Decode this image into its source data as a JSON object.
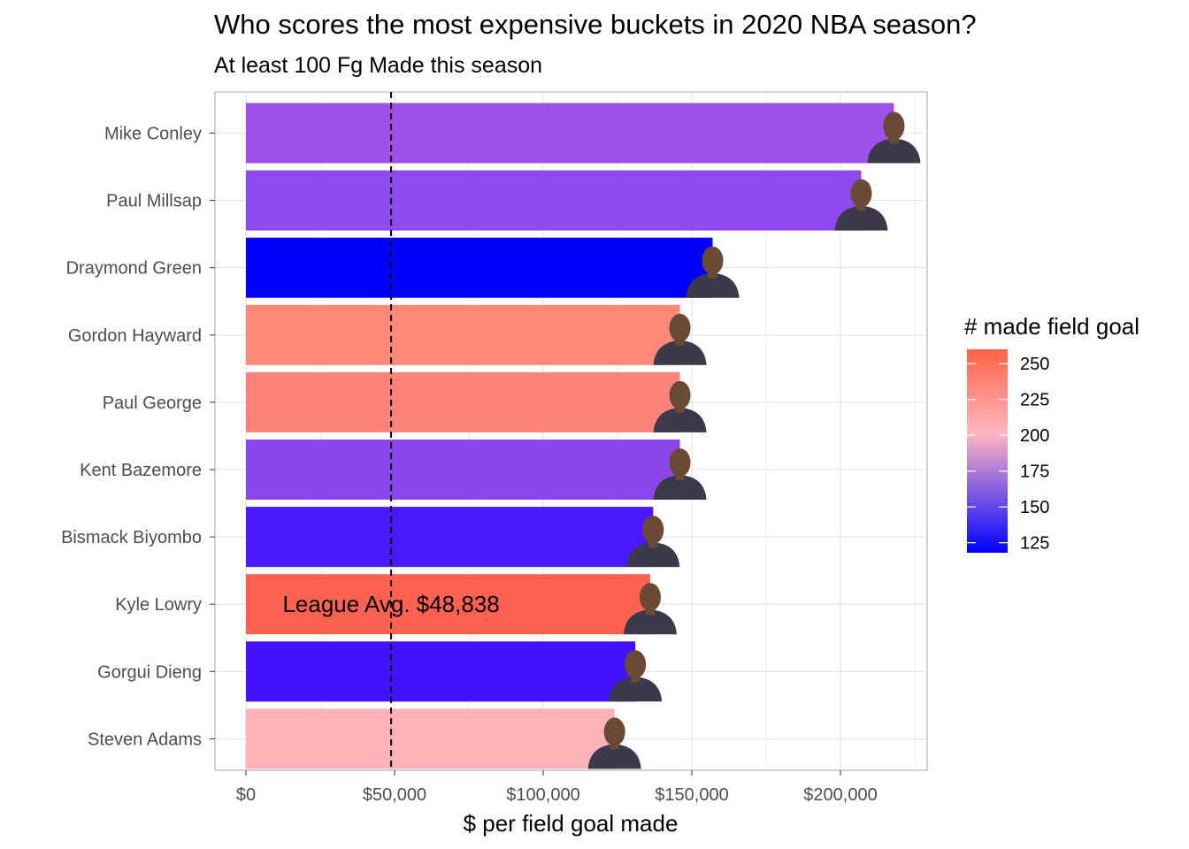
{
  "chart_data": {
    "type": "bar",
    "orientation": "horizontal",
    "title": "Who scores the most expensive buckets in 2020 NBA season?",
    "subtitle": "At least 100 Fg Made this season",
    "xlabel": "$ per field goal made",
    "ylabel": "",
    "xlim": [
      0,
      225000
    ],
    "x_ticks": [
      0,
      50000,
      100000,
      150000,
      200000
    ],
    "x_tick_labels": [
      "$0",
      "$50,000",
      "$100,000",
      "$150,000",
      "$200,000"
    ],
    "grid": true,
    "categories": [
      "Mike Conley",
      "Paul Millsap",
      "Draymond Green",
      "Gordon Hayward",
      "Paul George",
      "Kent Bazemore",
      "Bismack Biyombo",
      "Kyle Lowry",
      "Gorgui Dieng",
      "Steven Adams"
    ],
    "values": [
      218000,
      207000,
      157000,
      146000,
      146000,
      146000,
      137000,
      136000,
      131000,
      124000
    ],
    "made_field_goals": [
      158,
      152,
      118,
      238,
      235,
      152,
      128,
      256,
      130,
      205
    ],
    "bar_colors": [
      "#9f50e9",
      "#9049ed",
      "#0000ff",
      "#ff8878",
      "#ff837a",
      "#8b45ed",
      "#4a19fd",
      "#ff6250",
      "#4412fe",
      "#ffb3b9"
    ],
    "avatars": [
      "player-photo-mike-conley",
      "player-photo-paul-millsap",
      "player-photo-draymond-green",
      "player-photo-gordon-hayward",
      "player-photo-paul-george",
      "player-photo-kent-bazemore",
      "player-photo-bismack-biyombo",
      "player-photo-kyle-lowry",
      "player-photo-gorgui-dieng",
      "player-photo-steven-adams"
    ],
    "reference_line": {
      "value": 48838,
      "style": "dashed"
    },
    "annotation": {
      "text": "League Avg. $48,838",
      "category": "Kyle Lowry"
    },
    "legend": {
      "title": "# made field goal",
      "position": "right",
      "breaks": [
        250,
        225,
        200,
        175,
        150,
        125
      ],
      "range": [
        118,
        260
      ],
      "colors": {
        "low": "#0000ff",
        "mid": "#ffb6c1",
        "high": "#ff6347"
      }
    }
  }
}
